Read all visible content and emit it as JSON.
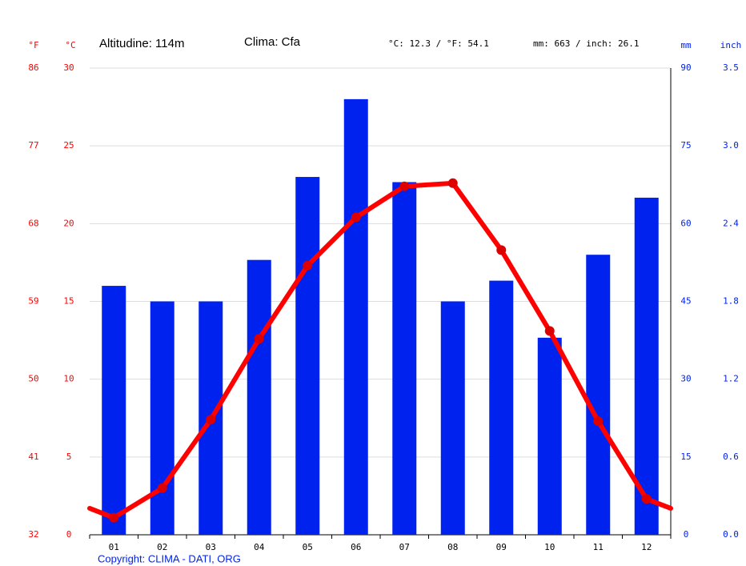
{
  "chart_data": {
    "type": "climate",
    "altitude": "Altitudine: 114m",
    "climate_class": "Clima: Cfa",
    "temperature_summary": "°C: 12.3 / °F: 54.1",
    "precipitation_summary": "mm: 663 / inch: 26.1",
    "copyright": "Copyright: CLIMA - DATI, ORG",
    "unit_f": "°F",
    "unit_c": "°C",
    "unit_mm": "mm",
    "unit_inch": "inch",
    "categories": [
      "01",
      "02",
      "03",
      "04",
      "05",
      "06",
      "07",
      "08",
      "09",
      "10",
      "11",
      "12"
    ],
    "temperature": {
      "color": "#ff0000",
      "values": [
        1.1,
        3.0,
        7.4,
        12.6,
        17.3,
        20.4,
        22.4,
        22.6,
        18.3,
        13.1,
        7.3,
        2.3
      ]
    },
    "precipitation": {
      "color": "#0022ee",
      "values": [
        48,
        45,
        45,
        53,
        69,
        84,
        68,
        45,
        49,
        38,
        54,
        65
      ]
    },
    "ylim": [
      0,
      30
    ],
    "yticks": [
      0,
      5,
      10,
      15,
      20,
      25,
      30
    ],
    "yflim": [
      32,
      86
    ],
    "yfticks": [
      32,
      41,
      50,
      59,
      68,
      77,
      86
    ],
    "y2lim": [
      0,
      90
    ],
    "y2ticks": [
      0,
      15,
      30,
      45,
      60,
      75,
      90
    ],
    "yinlim": [
      0,
      3.54
    ],
    "yinticks": [
      {
        "value": 0,
        "label": "0.0"
      },
      {
        "value": 0.59,
        "label": "0.6"
      },
      {
        "value": 1.18,
        "label": "1.2"
      },
      {
        "value": 1.77,
        "label": "1.8"
      },
      {
        "value": 2.36,
        "label": "2.4"
      },
      {
        "value": 2.95,
        "label": "3.0"
      },
      {
        "value": 3.54,
        "label": "3.5"
      }
    ],
    "grid": true
  }
}
